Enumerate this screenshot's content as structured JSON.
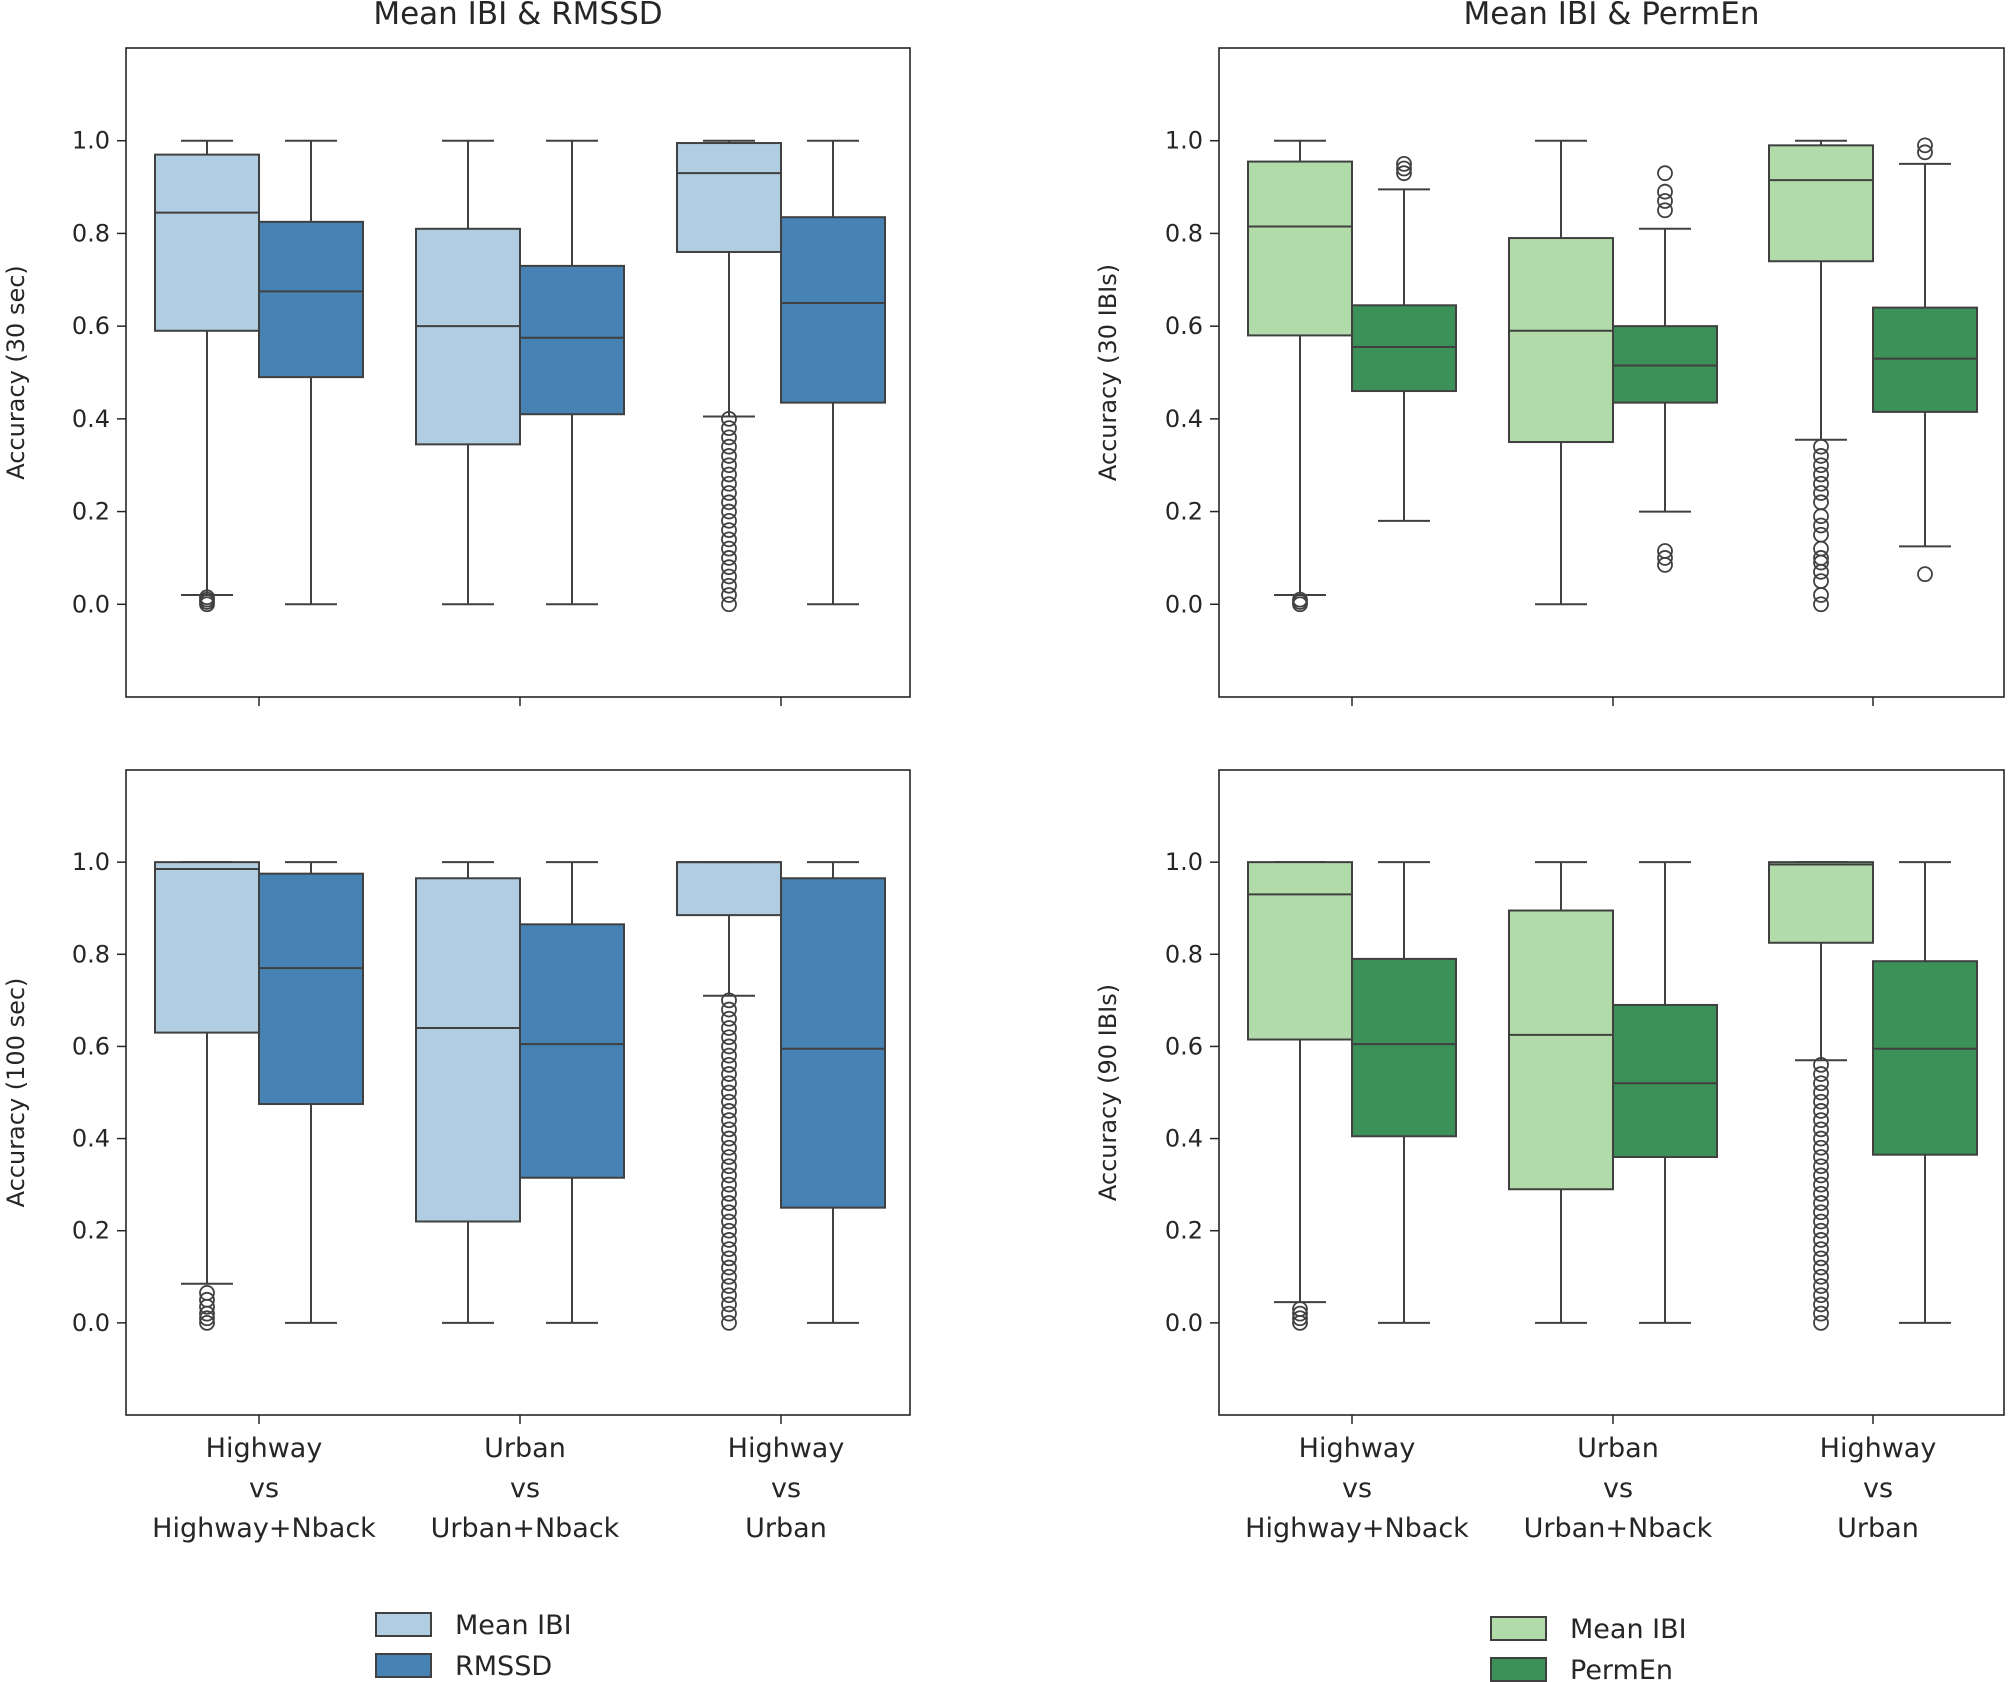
{
  "chart_data": [
    {
      "type": "box",
      "title": "Mean IBI & RMSSD",
      "ylabel": "Accuracy (30 sec)",
      "xlabel": "",
      "ylim": [
        -0.2,
        1.2
      ],
      "yticks": [
        "0.0",
        "0.2",
        "0.4",
        "0.6",
        "0.8",
        "1.0"
      ],
      "categories": [
        [
          "Highway",
          "vs",
          "Highway+Nback"
        ],
        [
          "Urban",
          "vs",
          "Urban+Nback"
        ],
        [
          "Highway",
          "vs",
          "Urban"
        ]
      ],
      "series": [
        {
          "name": "Mean IBI",
          "color": "#b0cde1",
          "boxes": [
            {
              "q1": 0.59,
              "median": 0.845,
              "q3": 0.97,
              "whislo": 0.02,
              "whishi": 1.0,
              "fliers": [
                0.0,
                0.005,
                0.01,
                0.015
              ]
            },
            {
              "q1": 0.345,
              "median": 0.6,
              "q3": 0.81,
              "whislo": 0.0,
              "whishi": 1.0,
              "fliers": []
            },
            {
              "q1": 0.76,
              "median": 0.93,
              "q3": 0.995,
              "whislo": 0.405,
              "whishi": 1.0,
              "fliers": [
                0.0,
                0.02,
                0.04,
                0.06,
                0.08,
                0.1,
                0.12,
                0.14,
                0.16,
                0.18,
                0.2,
                0.22,
                0.24,
                0.26,
                0.28,
                0.3,
                0.32,
                0.34,
                0.36,
                0.38,
                0.4
              ]
            }
          ]
        },
        {
          "name": "RMSSD",
          "color": "#4682b4",
          "boxes": [
            {
              "q1": 0.49,
              "median": 0.675,
              "q3": 0.825,
              "whislo": 0.0,
              "whishi": 1.0,
              "fliers": []
            },
            {
              "q1": 0.41,
              "median": 0.575,
              "q3": 0.73,
              "whislo": 0.0,
              "whishi": 1.0,
              "fliers": []
            },
            {
              "q1": 0.435,
              "median": 0.65,
              "q3": 0.835,
              "whislo": 0.0,
              "whishi": 1.0,
              "fliers": []
            }
          ]
        }
      ]
    },
    {
      "type": "box",
      "title": "Mean IBI & PermEn",
      "ylabel": "Accuracy (30 IBIs)",
      "xlabel": "",
      "ylim": [
        -0.2,
        1.2
      ],
      "yticks": [
        "0.0",
        "0.2",
        "0.4",
        "0.6",
        "0.8",
        "1.0"
      ],
      "categories": [
        [
          "Highway",
          "vs",
          "Highway+Nback"
        ],
        [
          "Urban",
          "vs",
          "Urban+Nback"
        ],
        [
          "Highway",
          "vs",
          "Urban"
        ]
      ],
      "series": [
        {
          "name": "Mean IBI",
          "color": "#b1dcaa",
          "boxes": [
            {
              "q1": 0.58,
              "median": 0.815,
              "q3": 0.955,
              "whislo": 0.02,
              "whishi": 1.0,
              "fliers": [
                0.0,
                0.005,
                0.01
              ]
            },
            {
              "q1": 0.35,
              "median": 0.59,
              "q3": 0.79,
              "whislo": 0.0,
              "whishi": 1.0,
              "fliers": []
            },
            {
              "q1": 0.74,
              "median": 0.915,
              "q3": 0.99,
              "whislo": 0.355,
              "whishi": 1.0,
              "fliers": [
                0.0,
                0.02,
                0.05,
                0.07,
                0.09,
                0.1,
                0.12,
                0.15,
                0.17,
                0.19,
                0.22,
                0.24,
                0.26,
                0.28,
                0.3,
                0.32,
                0.34
              ]
            }
          ]
        },
        {
          "name": "PermEn",
          "color": "#3b9157",
          "boxes": [
            {
              "q1": 0.46,
              "median": 0.555,
              "q3": 0.645,
              "whislo": 0.18,
              "whishi": 0.895,
              "fliers": [
                0.93,
                0.94,
                0.95
              ]
            },
            {
              "q1": 0.435,
              "median": 0.515,
              "q3": 0.6,
              "whislo": 0.2,
              "whishi": 0.81,
              "fliers": [
                0.085,
                0.1,
                0.115,
                0.85,
                0.87,
                0.89,
                0.93
              ]
            },
            {
              "q1": 0.415,
              "median": 0.53,
              "q3": 0.64,
              "whislo": 0.125,
              "whishi": 0.95,
              "fliers": [
                0.065,
                0.975,
                0.99
              ]
            }
          ]
        }
      ]
    },
    {
      "type": "box",
      "title": "",
      "ylabel": "Accuracy (100 sec)",
      "xlabel": "",
      "ylim": [
        -0.2,
        1.2
      ],
      "yticks": [
        "0.0",
        "0.2",
        "0.4",
        "0.6",
        "0.8",
        "1.0"
      ],
      "categories": [
        [
          "Highway",
          "vs",
          "Highway+Nback"
        ],
        [
          "Urban",
          "vs",
          "Urban+Nback"
        ],
        [
          "Highway",
          "vs",
          "Urban"
        ]
      ],
      "series": [
        {
          "name": "Mean IBI",
          "color": "#b0cde1",
          "boxes": [
            {
              "q1": 0.63,
              "median": 0.985,
              "q3": 1.0,
              "whislo": 0.085,
              "whishi": 1.0,
              "fliers": [
                0.0,
                0.01,
                0.02,
                0.035,
                0.05,
                0.065
              ]
            },
            {
              "q1": 0.22,
              "median": 0.64,
              "q3": 0.965,
              "whislo": 0.0,
              "whishi": 1.0,
              "fliers": []
            },
            {
              "q1": 0.885,
              "median": 1.0,
              "q3": 1.0,
              "whislo": 0.71,
              "whishi": 1.0,
              "fliers": [
                0.0,
                0.02,
                0.04,
                0.06,
                0.08,
                0.1,
                0.12,
                0.14,
                0.16,
                0.18,
                0.2,
                0.22,
                0.24,
                0.26,
                0.28,
                0.3,
                0.32,
                0.34,
                0.36,
                0.38,
                0.4,
                0.42,
                0.44,
                0.46,
                0.48,
                0.5,
                0.52,
                0.54,
                0.56,
                0.58,
                0.6,
                0.62,
                0.64,
                0.66,
                0.68,
                0.7
              ]
            }
          ]
        },
        {
          "name": "RMSSD",
          "color": "#4682b4",
          "boxes": [
            {
              "q1": 0.475,
              "median": 0.77,
              "q3": 0.975,
              "whislo": 0.0,
              "whishi": 1.0,
              "fliers": []
            },
            {
              "q1": 0.315,
              "median": 0.605,
              "q3": 0.865,
              "whislo": 0.0,
              "whishi": 1.0,
              "fliers": []
            },
            {
              "q1": 0.25,
              "median": 0.595,
              "q3": 0.965,
              "whislo": 0.0,
              "whishi": 1.0,
              "fliers": []
            }
          ]
        }
      ]
    },
    {
      "type": "box",
      "title": "",
      "ylabel": "Accuracy (90 IBIs)",
      "xlabel": "",
      "ylim": [
        -0.2,
        1.2
      ],
      "yticks": [
        "0.0",
        "0.2",
        "0.4",
        "0.6",
        "0.8",
        "1.0"
      ],
      "categories": [
        [
          "Highway",
          "vs",
          "Highway+Nback"
        ],
        [
          "Urban",
          "vs",
          "Urban+Nback"
        ],
        [
          "Highway",
          "vs",
          "Urban"
        ]
      ],
      "series": [
        {
          "name": "Mean IBI",
          "color": "#b1dcaa",
          "boxes": [
            {
              "q1": 0.615,
              "median": 0.93,
              "q3": 1.0,
              "whislo": 0.045,
              "whishi": 1.0,
              "fliers": [
                0.0,
                0.01,
                0.02,
                0.03
              ]
            },
            {
              "q1": 0.29,
              "median": 0.625,
              "q3": 0.895,
              "whislo": 0.0,
              "whishi": 1.0,
              "fliers": []
            },
            {
              "q1": 0.825,
              "median": 0.995,
              "q3": 1.0,
              "whislo": 0.57,
              "whishi": 1.0,
              "fliers": [
                0.0,
                0.02,
                0.04,
                0.06,
                0.08,
                0.1,
                0.12,
                0.14,
                0.16,
                0.18,
                0.2,
                0.22,
                0.24,
                0.26,
                0.28,
                0.3,
                0.32,
                0.34,
                0.36,
                0.38,
                0.4,
                0.42,
                0.44,
                0.46,
                0.48,
                0.5,
                0.52,
                0.54,
                0.56
              ]
            }
          ]
        },
        {
          "name": "PermEn",
          "color": "#3b9157",
          "boxes": [
            {
              "q1": 0.405,
              "median": 0.605,
              "q3": 0.79,
              "whislo": 0.0,
              "whishi": 1.0,
              "fliers": []
            },
            {
              "q1": 0.36,
              "median": 0.52,
              "q3": 0.69,
              "whislo": 0.0,
              "whishi": 1.0,
              "fliers": []
            },
            {
              "q1": 0.365,
              "median": 0.595,
              "q3": 0.785,
              "whislo": 0.0,
              "whishi": 1.0,
              "fliers": []
            }
          ]
        }
      ]
    }
  ],
  "legends": [
    {
      "items": [
        {
          "label": "Mean IBI",
          "color": "#b0cde1"
        },
        {
          "label": "RMSSD",
          "color": "#4682b4"
        }
      ]
    },
    {
      "items": [
        {
          "label": "Mean IBI",
          "color": "#b1dcaa"
        },
        {
          "label": "PermEn",
          "color": "#3b9157"
        }
      ]
    }
  ]
}
